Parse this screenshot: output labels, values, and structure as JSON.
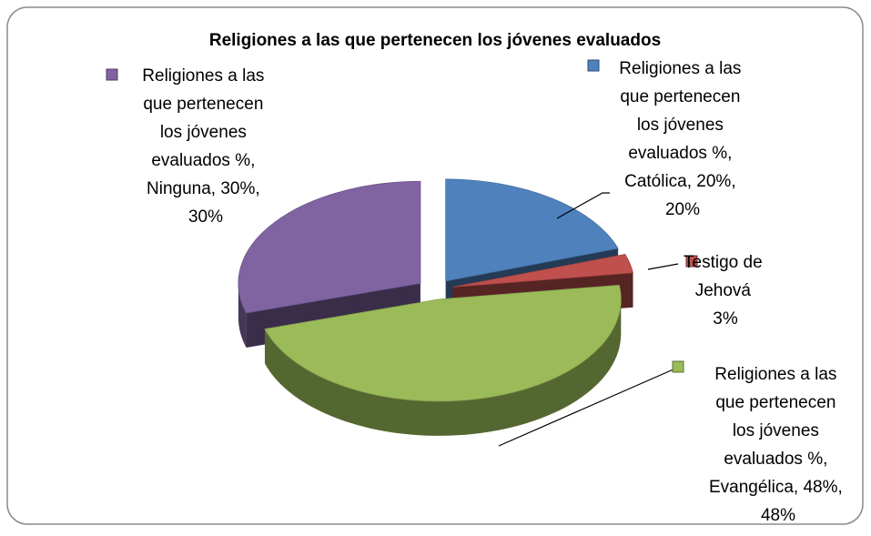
{
  "chart_data": {
    "type": "pie",
    "title": "Religiones a las que pertenecen los jóvenes evaluados",
    "values": [
      20,
      3,
      48,
      30
    ],
    "value_labels": [
      "Religiones a las que pertenecen los jóvenes evaluados %, Católica, 20%, 20%",
      "Testigo de Jehová\n3%",
      "Religiones a las que pertenecen los jóvenes evaluados %, Evangélica, 48%, 48%",
      "Religiones a las que pertenecen los jóvenes evaluados %, Ninguna, 30%, 30%"
    ],
    "colors": [
      "#4f81bd",
      "#c0504d",
      "#9bbb59",
      "#8064a2"
    ]
  }
}
